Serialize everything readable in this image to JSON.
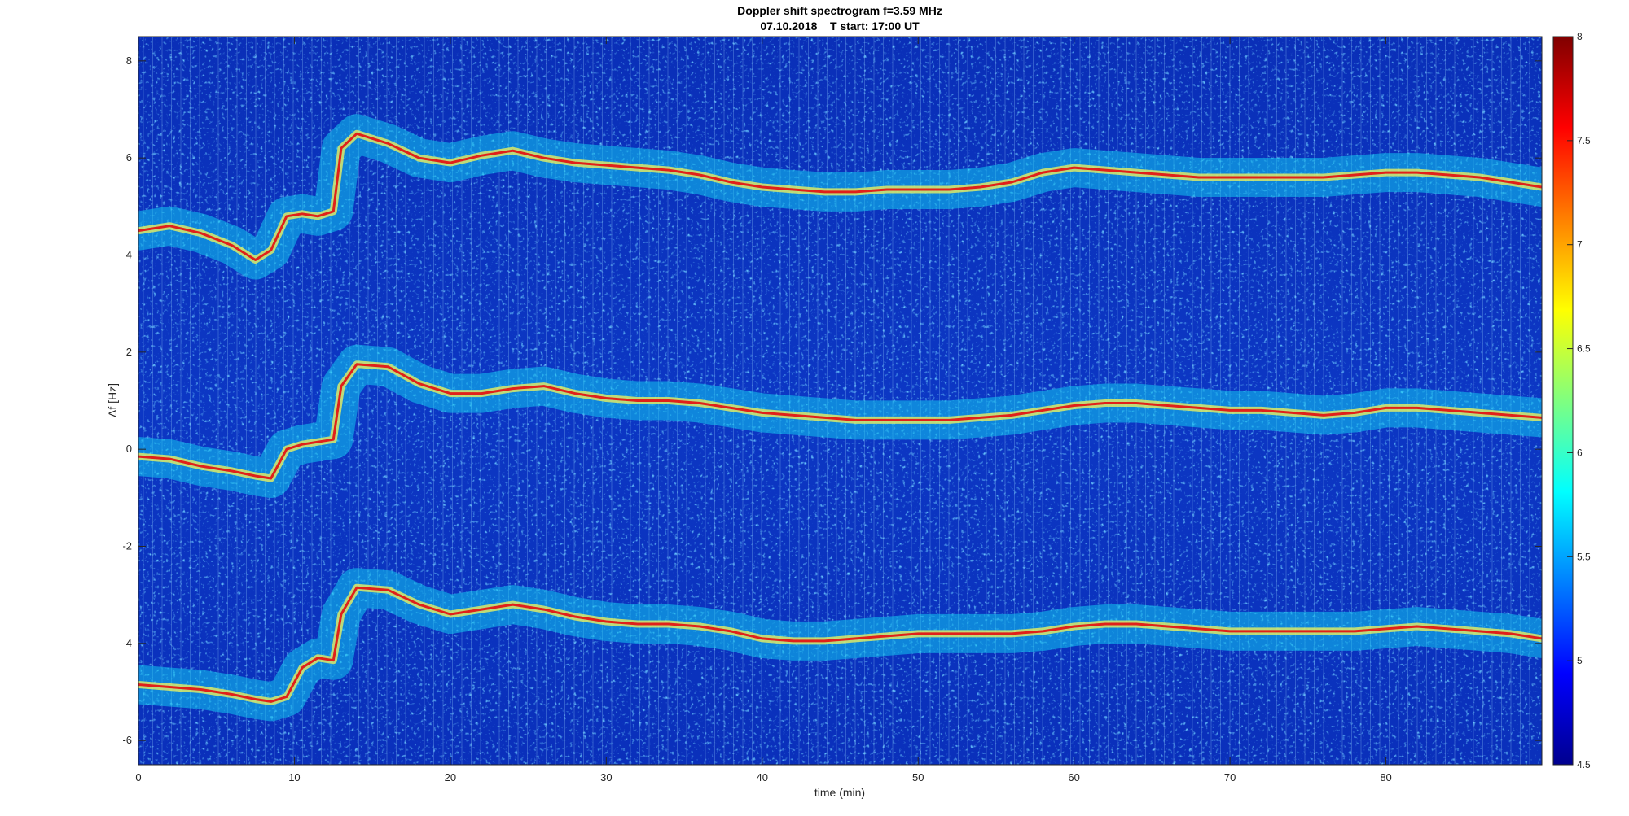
{
  "chart_data": {
    "type": "heatmap",
    "title": "Doppler shift spectrogram f=3.59 MHz",
    "subtitle": "07.10.2018    T start: 17:00 UT",
    "xlabel": "time (min)",
    "ylabel": "Δf [Hz]",
    "xlim": [
      0,
      90
    ],
    "ylim": [
      -6.5,
      8.5
    ],
    "x_ticks": [
      0,
      10,
      20,
      30,
      40,
      50,
      60,
      70,
      80
    ],
    "y_ticks": [
      -6,
      -4,
      -2,
      0,
      2,
      4,
      6,
      8
    ],
    "colorbar": {
      "colormap": "jet",
      "clim": [
        4.5,
        8
      ],
      "ticks": [
        4.5,
        5,
        5.5,
        6,
        6.5,
        7,
        7.5,
        8
      ]
    },
    "series": [
      {
        "x": [
          0,
          2,
          4,
          6,
          7.5,
          8.5,
          9.5,
          10.5,
          11.5,
          12.5,
          13,
          14,
          16,
          18,
          20,
          22,
          24,
          26,
          28,
          30,
          32,
          34,
          36,
          38,
          40,
          42,
          44,
          46,
          48,
          50,
          52,
          54,
          56,
          58,
          60,
          62,
          64,
          66,
          68,
          70,
          72,
          74,
          76,
          78,
          80,
          82,
          84,
          86,
          88,
          90
        ],
        "values": [
          4.5,
          4.6,
          4.45,
          4.2,
          3.9,
          4.1,
          4.8,
          4.85,
          4.8,
          4.9,
          6.2,
          6.5,
          6.3,
          6.0,
          5.9,
          6.05,
          6.15,
          6.0,
          5.9,
          5.85,
          5.8,
          5.75,
          5.65,
          5.5,
          5.4,
          5.35,
          5.3,
          5.3,
          5.35,
          5.35,
          5.35,
          5.4,
          5.5,
          5.7,
          5.8,
          5.75,
          5.7,
          5.65,
          5.6,
          5.6,
          5.6,
          5.6,
          5.6,
          5.65,
          5.7,
          5.7,
          5.65,
          5.6,
          5.5,
          5.4
        ]
      },
      {
        "x": [
          0,
          2,
          4,
          6,
          7.5,
          8.5,
          9.5,
          10.5,
          11.5,
          12.5,
          13,
          14,
          16,
          18,
          20,
          22,
          24,
          26,
          28,
          30,
          32,
          34,
          36,
          38,
          40,
          42,
          44,
          46,
          48,
          50,
          52,
          54,
          56,
          58,
          60,
          62,
          64,
          66,
          68,
          70,
          72,
          74,
          76,
          78,
          80,
          82,
          84,
          86,
          88,
          90
        ],
        "values": [
          -0.15,
          -0.2,
          -0.35,
          -0.45,
          -0.55,
          -0.6,
          0.0,
          0.1,
          0.15,
          0.2,
          1.3,
          1.75,
          1.7,
          1.35,
          1.15,
          1.15,
          1.25,
          1.3,
          1.15,
          1.05,
          1.0,
          1.0,
          0.95,
          0.85,
          0.75,
          0.7,
          0.65,
          0.6,
          0.6,
          0.6,
          0.6,
          0.65,
          0.7,
          0.8,
          0.9,
          0.95,
          0.95,
          0.9,
          0.85,
          0.8,
          0.8,
          0.75,
          0.7,
          0.75,
          0.85,
          0.85,
          0.8,
          0.75,
          0.7,
          0.65
        ]
      },
      {
        "x": [
          0,
          2,
          4,
          6,
          7.5,
          8.5,
          9.5,
          10.5,
          11.5,
          12.5,
          13,
          14,
          16,
          18,
          20,
          22,
          24,
          26,
          28,
          30,
          32,
          34,
          36,
          38,
          40,
          42,
          44,
          46,
          48,
          50,
          52,
          54,
          56,
          58,
          60,
          62,
          64,
          66,
          68,
          70,
          72,
          74,
          76,
          78,
          80,
          82,
          84,
          86,
          88,
          90
        ],
        "values": [
          -4.85,
          -4.9,
          -4.95,
          -5.05,
          -5.15,
          -5.2,
          -5.1,
          -4.5,
          -4.3,
          -4.35,
          -3.4,
          -2.85,
          -2.9,
          -3.2,
          -3.4,
          -3.3,
          -3.2,
          -3.3,
          -3.45,
          -3.55,
          -3.6,
          -3.6,
          -3.65,
          -3.75,
          -3.9,
          -3.95,
          -3.95,
          -3.9,
          -3.85,
          -3.8,
          -3.8,
          -3.8,
          -3.8,
          -3.75,
          -3.65,
          -3.6,
          -3.6,
          -3.65,
          -3.7,
          -3.75,
          -3.75,
          -3.75,
          -3.75,
          -3.75,
          -3.7,
          -3.65,
          -3.7,
          -3.75,
          -3.8,
          -3.9
        ]
      }
    ]
  }
}
